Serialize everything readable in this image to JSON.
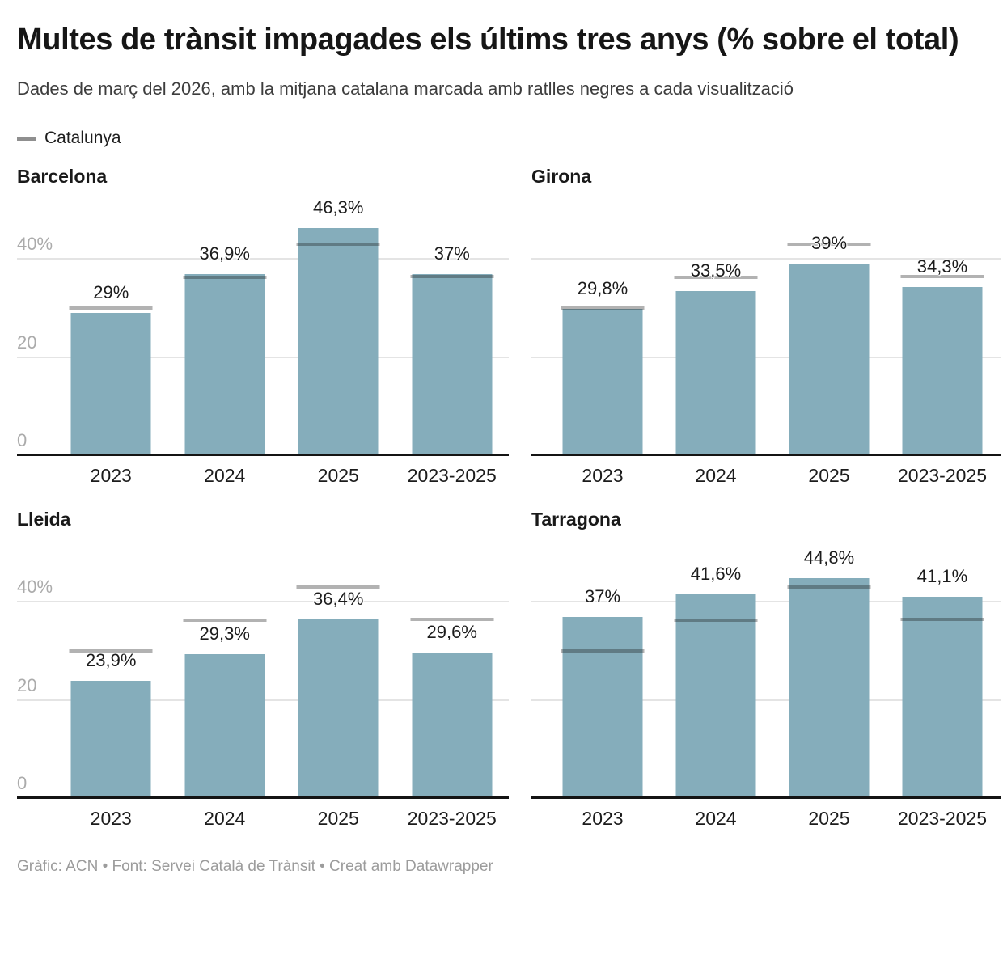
{
  "header": {
    "title": "Multes de trànsit impagades els últims tres anys (% sobre el total)",
    "subtitle": "Dades de març del 2026, amb la mitjana catalana marcada amb ratlles negres a cada visualització"
  },
  "legend": {
    "label": "Catalunya",
    "swatch_color": "#8f8f8f"
  },
  "colors": {
    "bar": "#85adbb",
    "reference_line": "rgba(20,20,20,0.33)",
    "gridline": "#e4e4e4",
    "axis_line": "#141414",
    "tick_label": "#ababab",
    "text": "#1c1c1c",
    "footer_text": "#9c9c9c"
  },
  "chart_data": [
    {
      "type": "bar",
      "title": "Barcelona",
      "categories": [
        "2023",
        "2024",
        "2025",
        "2023-2025"
      ],
      "values": [
        29,
        36.9,
        46.3,
        37
      ],
      "value_labels": [
        "29%",
        "36,9%",
        "46,3%",
        "37%"
      ],
      "reference_line": {
        "name": "Catalunya",
        "values": [
          30,
          36.3,
          43.1,
          36.4
        ]
      },
      "y_axis": {
        "ticks": [
          0,
          20,
          40
        ],
        "tick_labels": [
          "0",
          "20",
          "40%"
        ],
        "show_tick_labels": true,
        "ylim": [
          0,
          54
        ]
      },
      "grid": true,
      "legend_position": "top-left"
    },
    {
      "type": "bar",
      "title": "Girona",
      "categories": [
        "2023",
        "2024",
        "2025",
        "2023-2025"
      ],
      "values": [
        29.8,
        33.5,
        39,
        34.3
      ],
      "value_labels": [
        "29,8%",
        "33,5%",
        "39%",
        "34,3%"
      ],
      "reference_line": {
        "name": "Catalunya",
        "values": [
          30,
          36.3,
          43.1,
          36.4
        ]
      },
      "y_axis": {
        "ticks": [
          0,
          20,
          40
        ],
        "tick_labels": [],
        "show_tick_labels": false,
        "ylim": [
          0,
          54
        ]
      },
      "grid": true,
      "legend_position": "top-left"
    },
    {
      "type": "bar",
      "title": "Lleida",
      "categories": [
        "2023",
        "2024",
        "2025",
        "2023-2025"
      ],
      "values": [
        23.9,
        29.3,
        36.4,
        29.6
      ],
      "value_labels": [
        "23,9%",
        "29,3%",
        "36,4%",
        "29,6%"
      ],
      "reference_line": {
        "name": "Catalunya",
        "values": [
          30,
          36.3,
          43.1,
          36.4
        ]
      },
      "y_axis": {
        "ticks": [
          0,
          20,
          40
        ],
        "tick_labels": [
          "0",
          "20",
          "40%"
        ],
        "show_tick_labels": true,
        "ylim": [
          0,
          54
        ]
      },
      "grid": true,
      "legend_position": "top-left"
    },
    {
      "type": "bar",
      "title": "Tarragona",
      "categories": [
        "2023",
        "2024",
        "2025",
        "2023-2025"
      ],
      "values": [
        37,
        41.6,
        44.8,
        41.1
      ],
      "value_labels": [
        "37%",
        "41,6%",
        "44,8%",
        "41,1%"
      ],
      "reference_line": {
        "name": "Catalunya",
        "values": [
          30,
          36.3,
          43.1,
          36.4
        ]
      },
      "y_axis": {
        "ticks": [
          0,
          20,
          40
        ],
        "tick_labels": [],
        "show_tick_labels": false,
        "ylim": [
          0,
          54
        ]
      },
      "grid": true,
      "legend_position": "top-left"
    }
  ],
  "footer": {
    "credits": "Gràfic: ACN • Font: Servei Català de Trànsit • Creat amb Datawrapper"
  }
}
